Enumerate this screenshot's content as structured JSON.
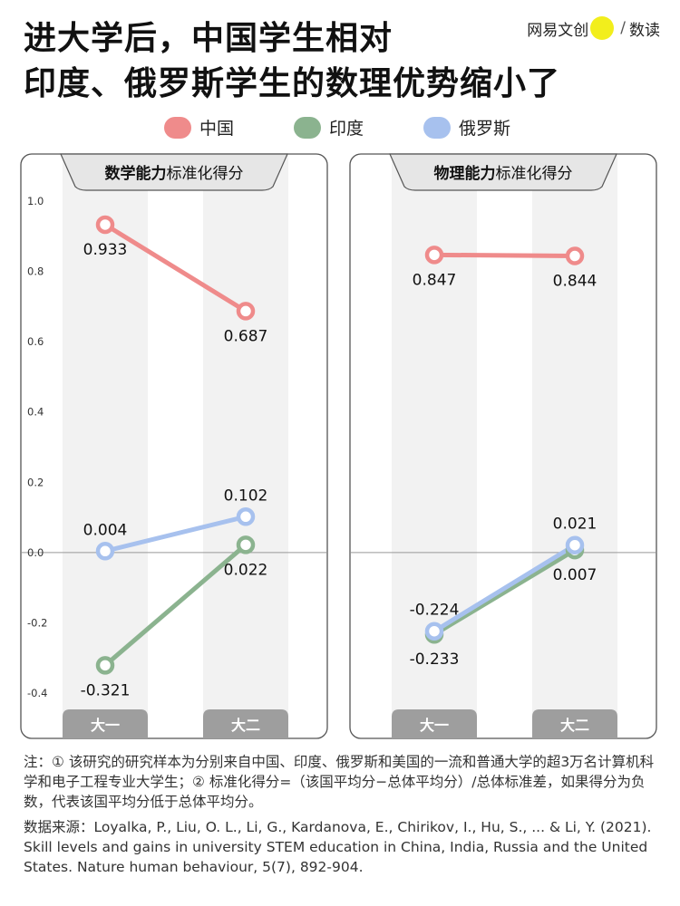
{
  "title": {
    "line1": "进大学后，中国学生相对",
    "line2": "印度、俄罗斯学生的数理优势缩小了"
  },
  "brand": {
    "name": "网易文创",
    "badge": "Netease",
    "sub": "数读"
  },
  "legend": [
    {
      "label": "中国",
      "color": "#ef8b8b"
    },
    {
      "label": "印度",
      "color": "#8bb38f"
    },
    {
      "label": "俄罗斯",
      "color": "#a7c1ee"
    }
  ],
  "chart_data": [
    {
      "type": "line",
      "title_bold": "数学能力",
      "title_rest": "标准化得分",
      "categories": [
        "大一",
        "大二"
      ],
      "ylim": [
        -0.4,
        1.0
      ],
      "yticks": [
        "1.0",
        "0.8",
        "0.6",
        "0.4",
        "0.2",
        "0.0",
        "-0.2",
        "-0.4"
      ],
      "series": [
        {
          "name": "中国",
          "values": [
            0.933,
            0.687
          ],
          "labels": [
            "0.933",
            "0.687"
          ],
          "color": "#ef8b8b"
        },
        {
          "name": "印度",
          "values": [
            -0.321,
            0.022
          ],
          "labels": [
            "-0.321",
            "0.022"
          ],
          "color": "#8bb38f"
        },
        {
          "name": "俄罗斯",
          "values": [
            0.004,
            0.102
          ],
          "labels": [
            "0.004",
            "0.102"
          ],
          "color": "#a7c1ee"
        }
      ]
    },
    {
      "type": "line",
      "title_bold": "物理能力",
      "title_rest": "标准化得分",
      "categories": [
        "大一",
        "大二"
      ],
      "ylim": [
        -0.4,
        1.0
      ],
      "series": [
        {
          "name": "中国",
          "values": [
            0.847,
            0.844
          ],
          "labels": [
            "0.847",
            "0.844"
          ],
          "color": "#ef8b8b"
        },
        {
          "name": "印度",
          "values": [
            -0.233,
            0.007
          ],
          "labels": [
            "-0.233",
            "0.007"
          ],
          "color": "#8bb38f"
        },
        {
          "name": "俄罗斯",
          "values": [
            -0.224,
            0.021
          ],
          "labels": [
            "-0.224",
            "0.021"
          ],
          "color": "#a7c1ee"
        }
      ]
    }
  ],
  "notes": {
    "note": "注：① 该研究的研究样本为分别来自中国、印度、俄罗斯和美国的一流和普通大学的超3万名计算机科学和电子工程专业大学生；② 标准化得分=（该国平均分−总体平均分）/总体标准差，如果得分为负数，代表该国平均分低于总体平均分。",
    "source": "数据来源：Loyalka, P., Liu, O. L., Li, G., Kardanova, E., Chirikov, I., Hu, S., ... & Li, Y. (2021). Skill levels and gains in university STEM education in China, India, Russia and the United States. Nature human behaviour, 5(7), 892-904."
  }
}
